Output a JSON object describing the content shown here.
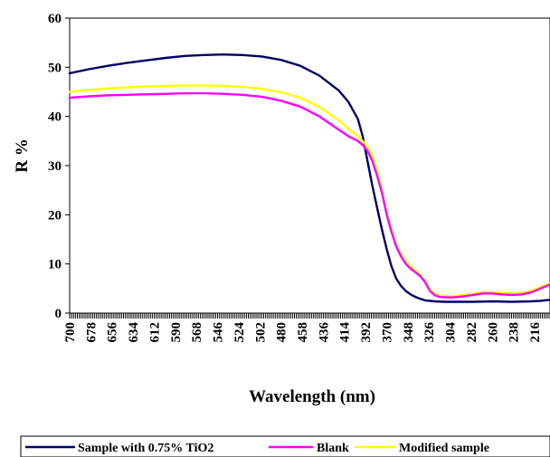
{
  "chart_data": {
    "type": "line",
    "xlabel": "Wavelength (nm)",
    "ylabel": "R %",
    "xlim": [
      700,
      200
    ],
    "ylim": [
      0,
      60
    ],
    "y_ticks": [
      0,
      10,
      20,
      30,
      40,
      50,
      60
    ],
    "x_tick_labels": [
      "700",
      "678",
      "656",
      "634",
      "612",
      "590",
      "568",
      "546",
      "524",
      "502",
      "480",
      "458",
      "436",
      "414",
      "392",
      "370",
      "348",
      "326",
      "304",
      "282",
      "260",
      "238",
      "216"
    ],
    "grid": false,
    "legend_position": "bottom",
    "series": [
      {
        "name": "Sample with 0.75% TiO2",
        "color": "#000066",
        "x": [
          700,
          680,
          660,
          640,
          620,
          600,
          580,
          560,
          540,
          520,
          500,
          480,
          460,
          440,
          420,
          410,
          400,
          395,
          390,
          385,
          380,
          375,
          370,
          365,
          360,
          355,
          350,
          345,
          340,
          335,
          330,
          320,
          310,
          300,
          290,
          280,
          260,
          240,
          220,
          210,
          200
        ],
        "y": [
          48.8,
          49.6,
          50.3,
          50.9,
          51.4,
          51.9,
          52.3,
          52.5,
          52.6,
          52.5,
          52.2,
          51.5,
          50.3,
          48.3,
          45.3,
          43.0,
          39.5,
          36.0,
          31.0,
          26.0,
          21.5,
          17.0,
          13.0,
          9.5,
          7.0,
          5.5,
          4.5,
          3.8,
          3.3,
          2.9,
          2.6,
          2.4,
          2.3,
          2.3,
          2.3,
          2.3,
          2.4,
          2.3,
          2.4,
          2.5,
          2.7
        ]
      },
      {
        "name": "Blank",
        "color": "#ff00ff",
        "x": [
          700,
          680,
          660,
          640,
          620,
          600,
          580,
          560,
          540,
          520,
          500,
          480,
          460,
          440,
          420,
          410,
          400,
          395,
          390,
          385,
          380,
          375,
          370,
          365,
          360,
          355,
          350,
          345,
          340,
          335,
          330,
          325,
          320,
          315,
          310,
          305,
          300,
          295,
          290,
          280,
          270,
          260,
          250,
          240,
          230,
          220,
          210,
          200
        ],
        "y": [
          43.8,
          44.1,
          44.3,
          44.4,
          44.5,
          44.6,
          44.7,
          44.7,
          44.6,
          44.4,
          44.0,
          43.2,
          42.0,
          40.0,
          37.3,
          36.0,
          35.0,
          34.2,
          33.0,
          31.0,
          28.0,
          24.5,
          20.0,
          16.5,
          13.5,
          11.5,
          10.0,
          9.0,
          8.3,
          7.5,
          6.3,
          4.5,
          3.6,
          3.3,
          3.2,
          3.2,
          3.2,
          3.3,
          3.4,
          3.7,
          4.0,
          4.0,
          3.8,
          3.7,
          3.8,
          4.2,
          5.0,
          5.8
        ]
      },
      {
        "name": "Modified sample",
        "color": "#ffff00",
        "x": [
          700,
          680,
          660,
          640,
          620,
          600,
          580,
          560,
          540,
          520,
          500,
          480,
          460,
          440,
          420,
          410,
          400,
          395,
          390,
          385,
          380,
          375,
          370,
          365,
          360,
          355,
          350,
          345,
          340,
          335,
          330,
          325,
          320,
          315,
          310,
          305,
          300,
          295,
          290,
          280,
          270,
          260,
          250,
          240,
          230,
          220,
          210,
          200
        ],
        "y": [
          45.0,
          45.4,
          45.7,
          45.9,
          46.1,
          46.2,
          46.3,
          46.3,
          46.2,
          46.0,
          45.6,
          44.9,
          43.8,
          41.9,
          39.2,
          37.5,
          36.0,
          35.0,
          33.8,
          32.0,
          29.0,
          25.0,
          20.5,
          17.0,
          14.0,
          12.0,
          10.5,
          9.5,
          8.7,
          7.8,
          6.6,
          4.8,
          3.9,
          3.6,
          3.5,
          3.5,
          3.5,
          3.6,
          3.7,
          4.0,
          4.3,
          4.3,
          4.1,
          4.0,
          4.1,
          4.5,
          5.3,
          6.1
        ]
      }
    ]
  }
}
